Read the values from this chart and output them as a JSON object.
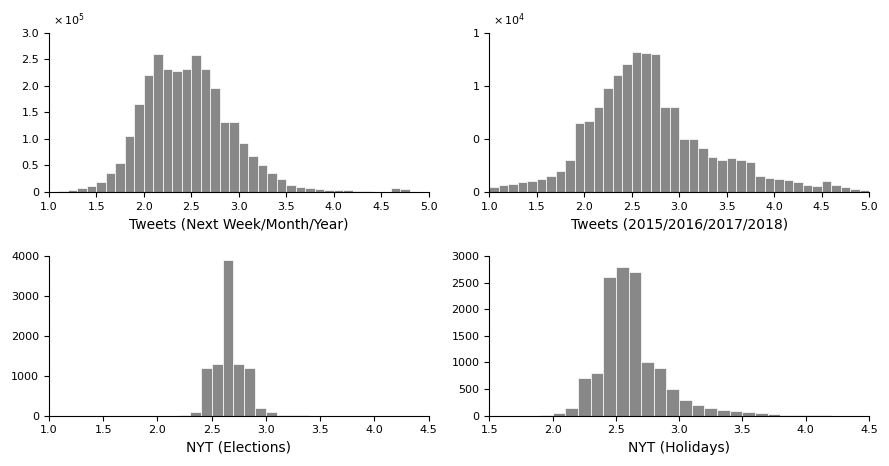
{
  "bar_color": "#888888",
  "subplot1": {
    "title": "Tweets (Next Week/Month/Year)",
    "xlim": [
      1,
      5
    ],
    "ylim": [
      0,
      300000
    ],
    "yticks": [
      0,
      50000,
      100000,
      150000,
      200000,
      250000,
      300000
    ],
    "xticks": [
      1,
      1.5,
      2,
      2.5,
      3,
      3.5,
      4,
      4.5,
      5
    ],
    "scale": 5,
    "bin_edges": [
      1.0,
      1.1,
      1.2,
      1.3,
      1.4,
      1.5,
      1.6,
      1.7,
      1.8,
      1.9,
      2.0,
      2.1,
      2.2,
      2.3,
      2.4,
      2.5,
      2.6,
      2.7,
      2.8,
      2.9,
      3.0,
      3.1,
      3.2,
      3.3,
      3.4,
      3.5,
      3.6,
      3.7,
      3.8,
      3.9,
      4.0,
      4.1,
      4.2,
      4.3,
      4.4,
      4.5,
      4.6,
      4.7,
      4.8,
      4.9,
      5.0
    ],
    "heights": [
      1000,
      2000,
      4000,
      7000,
      12000,
      18000,
      35000,
      55000,
      105000,
      165000,
      220000,
      260000,
      232000,
      228000,
      232000,
      258000,
      232000,
      195000,
      132000,
      132000,
      92000,
      68000,
      50000,
      35000,
      25000,
      13000,
      10000,
      8000,
      5000,
      3000,
      4000,
      3000,
      2000,
      1500,
      1000,
      500,
      7000,
      5000,
      1000,
      500
    ]
  },
  "subplot2": {
    "title": "Tweets (2015/2016/2017/2018)",
    "xlim": [
      1,
      5
    ],
    "ylim": [
      0,
      15000
    ],
    "yticks": [
      0,
      5000,
      10000,
      15000
    ],
    "xticks": [
      1,
      1.5,
      2,
      2.5,
      3,
      3.5,
      4,
      4.5,
      5
    ],
    "scale": 4,
    "bin_edges": [
      1.0,
      1.1,
      1.2,
      1.3,
      1.4,
      1.5,
      1.6,
      1.7,
      1.8,
      1.9,
      2.0,
      2.1,
      2.2,
      2.3,
      2.4,
      2.5,
      2.6,
      2.7,
      2.8,
      2.9,
      3.0,
      3.1,
      3.2,
      3.3,
      3.4,
      3.5,
      3.6,
      3.7,
      3.8,
      3.9,
      4.0,
      4.1,
      4.2,
      4.3,
      4.4,
      4.5,
      4.6,
      4.7,
      4.8,
      4.9,
      5.0
    ],
    "heights": [
      500,
      700,
      800,
      900,
      1000,
      1200,
      1500,
      2000,
      3000,
      6500,
      6700,
      8000,
      9800,
      11000,
      12000,
      13200,
      13100,
      13000,
      8000,
      8000,
      5000,
      5000,
      4100,
      3300,
      3000,
      3200,
      3000,
      2800,
      1500,
      1300,
      1200,
      1100,
      900,
      700,
      600,
      1000,
      700,
      500,
      300,
      200
    ]
  },
  "subplot3": {
    "title": "NYT (Elections)",
    "xlim": [
      1,
      4.5
    ],
    "ylim": [
      0,
      4000
    ],
    "yticks": [
      0,
      1000,
      2000,
      3000,
      4000
    ],
    "xticks": [
      1,
      1.5,
      2,
      2.5,
      3,
      3.5,
      4,
      4.5
    ],
    "scale": 0,
    "bin_edges": [
      1.0,
      1.1,
      1.2,
      1.3,
      1.4,
      1.5,
      1.6,
      1.7,
      1.8,
      1.9,
      2.0,
      2.1,
      2.2,
      2.3,
      2.4,
      2.5,
      2.6,
      2.7,
      2.8,
      2.9,
      3.0,
      3.1,
      3.2,
      3.3,
      3.4,
      3.5,
      3.6,
      3.7,
      3.8,
      3.9,
      4.0,
      4.1,
      4.2,
      4.3,
      4.4,
      4.5
    ],
    "heights": [
      0,
      0,
      0,
      0,
      0,
      0,
      0,
      0,
      0,
      0,
      0,
      0,
      5,
      100,
      1200,
      1300,
      3900,
      1300,
      1200,
      200,
      100,
      10,
      5,
      3,
      2,
      1,
      1,
      0,
      0,
      0,
      0,
      0,
      0,
      0,
      0
    ]
  },
  "subplot4": {
    "title": "NYT (Holidays)",
    "xlim": [
      1.5,
      4.5
    ],
    "ylim": [
      0,
      3000
    ],
    "yticks": [
      0,
      500,
      1000,
      1500,
      2000,
      2500,
      3000
    ],
    "xticks": [
      1.5,
      2,
      2.5,
      3,
      3.5,
      4,
      4.5
    ],
    "scale": 0,
    "bin_edges": [
      1.5,
      1.6,
      1.7,
      1.8,
      1.9,
      2.0,
      2.1,
      2.2,
      2.3,
      2.4,
      2.5,
      2.6,
      2.7,
      2.8,
      2.9,
      3.0,
      3.1,
      3.2,
      3.3,
      3.4,
      3.5,
      3.6,
      3.7,
      3.8,
      3.9,
      4.0,
      4.1,
      4.2,
      4.3,
      4.4,
      4.5
    ],
    "heights": [
      0,
      0,
      0,
      0,
      5,
      50,
      150,
      700,
      800,
      2600,
      2800,
      2700,
      1000,
      900,
      500,
      300,
      200,
      150,
      100,
      80,
      60,
      40,
      30,
      20,
      10,
      5,
      3,
      2,
      1,
      0
    ]
  }
}
